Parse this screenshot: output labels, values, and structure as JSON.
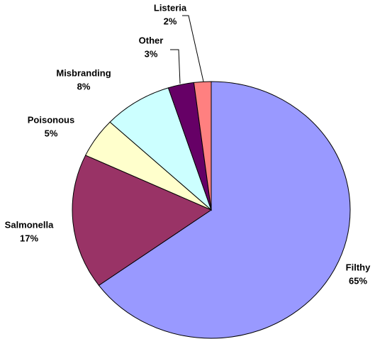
{
  "chart_data": {
    "type": "pie",
    "categories": [
      "Filthy",
      "Salmonella",
      "Poisonous",
      "Misbranding",
      "Other",
      "Listeria"
    ],
    "values": [
      65,
      17,
      5,
      8,
      3,
      2
    ],
    "value_labels": [
      "65%",
      "17%",
      "5%",
      "8%",
      "3%",
      "2%"
    ],
    "colors": [
      "#9999ff",
      "#993366",
      "#ffffcc",
      "#ccffff",
      "#660066",
      "#ff8080"
    ]
  }
}
